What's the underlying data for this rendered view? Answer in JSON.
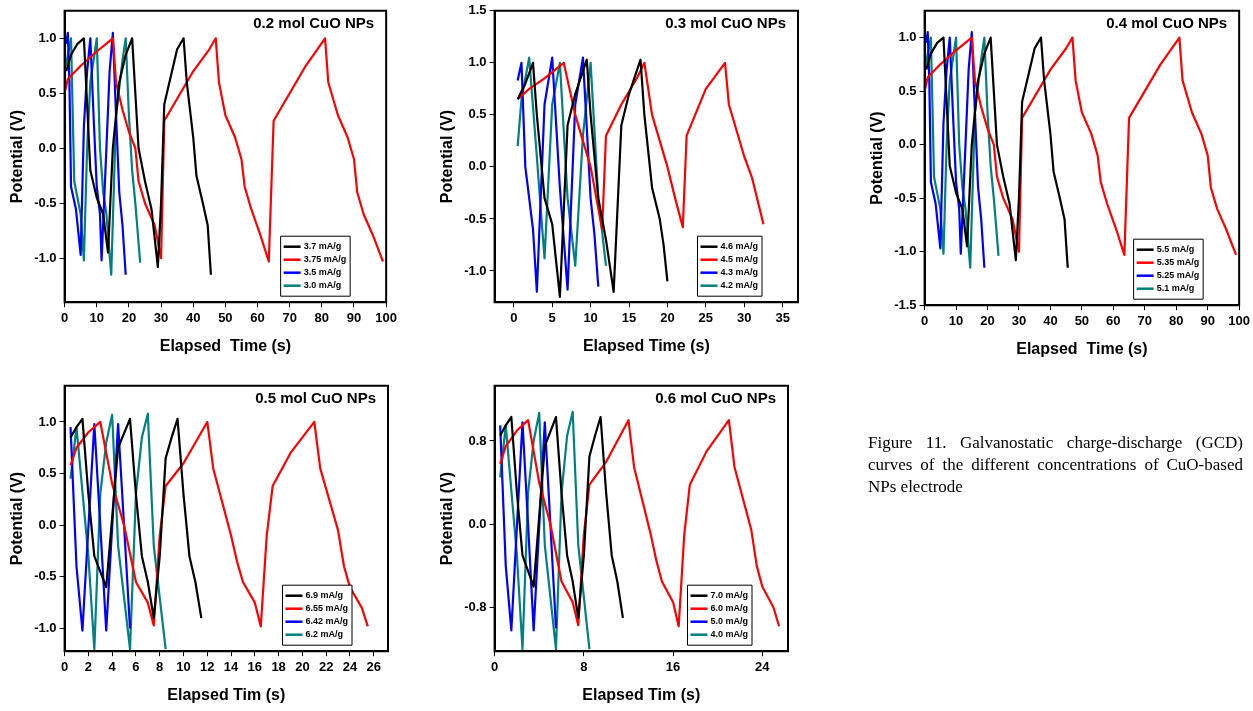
{
  "chart_data": [
    {
      "type": "line",
      "title": "0.2 mol CuO NPs",
      "xlabel": "Elapsed  Time (s)",
      "ylabel": "Potential (V)",
      "xlim": [
        0,
        100
      ],
      "xticks": [
        0,
        10,
        20,
        30,
        40,
        50,
        60,
        70,
        80,
        90,
        100
      ],
      "ylim": [
        -1.4,
        1.25
      ],
      "yticks": [
        {
          "value": -1,
          "label": "-1.0"
        },
        -0.5,
        {
          "value": 0,
          "label": "0.0"
        },
        0.5,
        {
          "value": 1,
          "label": "1.0"
        }
      ],
      "grid": false,
      "legend": "bottom right",
      "marker": "none",
      "line_style": "solid",
      "series": [
        {
          "name": "3.7 mA/g",
          "color": "#000000",
          "x": [
            0.5,
            2,
            4,
            6,
            7,
            8,
            10,
            12,
            13.5,
            15,
            17,
            19,
            21,
            22,
            23,
            25,
            27,
            29,
            30,
            31,
            33,
            35,
            37,
            38,
            40,
            41,
            43,
            44.5,
            45.5
          ],
          "values": [
            0.7,
            0.85,
            0.95,
            1.0,
            0.4,
            -0.2,
            -0.45,
            -0.6,
            -0.95,
            0.0,
            0.6,
            0.85,
            1.0,
            0.5,
            0.0,
            -0.3,
            -0.55,
            -1.08,
            -0.5,
            0.4,
            0.65,
            0.9,
            1.0,
            0.6,
            0.1,
            -0.25,
            -0.5,
            -0.7,
            -1.15
          ]
        },
        {
          "name": "3.75 mA/g",
          "color": "#ff0000",
          "x": [
            0,
            1,
            5,
            10,
            15,
            16,
            18,
            20,
            22,
            23,
            25,
            28,
            30,
            31,
            35,
            40,
            45,
            47,
            48,
            50,
            53,
            55,
            56,
            58,
            61,
            63.5,
            65,
            70,
            75,
            81,
            82,
            85,
            88,
            90,
            91,
            93,
            96,
            99
          ],
          "values": [
            0.5,
            0.63,
            0.75,
            0.88,
            1.0,
            0.6,
            0.35,
            0.15,
            0.0,
            -0.3,
            -0.5,
            -0.7,
            -1.0,
            0.25,
            0.45,
            0.7,
            0.9,
            1.0,
            0.6,
            0.3,
            0.1,
            -0.1,
            -0.35,
            -0.55,
            -0.8,
            -1.03,
            0.25,
            0.5,
            0.75,
            1.0,
            0.6,
            0.3,
            0.1,
            -0.1,
            -0.4,
            -0.6,
            -0.8,
            -1.03
          ]
        },
        {
          "name": "3.5 mA/g",
          "color": "#0000ff",
          "x": [
            0.5,
            1,
            1.5,
            2,
            3.5,
            5,
            6,
            7,
            8,
            9,
            10,
            11,
            11.5,
            13,
            14,
            15,
            16,
            17,
            18,
            19
          ],
          "values": [
            0.95,
            1.05,
            0.6,
            -0.35,
            -0.55,
            -0.97,
            0.2,
            0.7,
            1.0,
            0.3,
            -0.35,
            -0.6,
            -1.02,
            0.0,
            0.7,
            1.05,
            0.3,
            -0.4,
            -0.7,
            -1.15
          ]
        },
        {
          "name": "3.0 mA/g",
          "color": "#008080",
          "x": [
            0.5,
            1,
            2,
            3,
            5,
            6,
            7,
            8,
            10,
            11,
            12,
            13,
            14.5,
            16,
            18,
            19,
            20,
            21,
            22,
            23.5
          ],
          "values": [
            0.75,
            0.85,
            1.0,
            -0.3,
            -0.6,
            -1.02,
            0.0,
            0.6,
            1.0,
            0.0,
            -0.4,
            -0.6,
            -1.15,
            0.3,
            0.8,
            1.0,
            0.3,
            -0.2,
            -0.5,
            -1.04
          ]
        }
      ]
    },
    {
      "type": "line",
      "title": "0.3 mol CuO NPs",
      "xlabel": "Elapsed Time (s)",
      "ylabel": "Potential (V)",
      "xlim": [
        -2.5,
        37
      ],
      "xticks": [
        0,
        5,
        10,
        15,
        20,
        25,
        30,
        35
      ],
      "ylim": [
        -1.3,
        1.5
      ],
      "yticks": [
        {
          "value": -1,
          "label": "-1.0"
        },
        -0.5,
        {
          "value": 0,
          "label": "0.0"
        },
        0.5,
        {
          "value": 1,
          "label": "1.0"
        },
        1.5
      ],
      "grid": false,
      "legend": "bottom right",
      "marker": "none",
      "line_style": "solid",
      "series": [
        {
          "name": "4.6 mA/g",
          "color": "#000000",
          "x": [
            0.5,
            1.5,
            2.5,
            3,
            4,
            5,
            6,
            7,
            8,
            9.5,
            10,
            11,
            12,
            13,
            14,
            15,
            16.5,
            17,
            18,
            19,
            19.5,
            20
          ],
          "values": [
            0.65,
            0.8,
            1.0,
            0.5,
            -0.3,
            -0.55,
            -1.25,
            0.4,
            0.7,
            1.03,
            0.5,
            -0.3,
            -0.7,
            -1.2,
            0.4,
            0.7,
            1.03,
            0.5,
            -0.2,
            -0.5,
            -0.75,
            -1.1
          ]
        },
        {
          "name": "4.5 mA/g",
          "color": "#ff0000",
          "x": [
            0.5,
            2,
            4,
            6.5,
            8,
            10,
            11.5,
            12,
            14,
            16,
            17,
            18,
            19,
            20,
            21,
            22,
            22.5,
            25,
            27.5,
            28,
            29,
            30,
            31,
            32.5
          ],
          "values": [
            0.65,
            0.75,
            0.85,
            1.0,
            0.5,
            0.0,
            -0.6,
            0.3,
            0.6,
            0.85,
            1.0,
            0.5,
            0.25,
            0.0,
            -0.3,
            -0.58,
            0.3,
            0.75,
            1.0,
            0.6,
            0.35,
            0.1,
            -0.1,
            -0.55
          ]
        },
        {
          "name": "4.3 mA/g",
          "color": "#0000ff",
          "x": [
            0.5,
            1,
            1.5,
            2.5,
            3,
            4,
            5,
            6,
            7,
            8,
            9,
            10,
            10.5,
            11
          ],
          "values": [
            0.83,
            1.0,
            0.0,
            -0.6,
            -1.2,
            0.6,
            1.05,
            -0.2,
            -1.18,
            0.6,
            1.05,
            -0.3,
            -0.65,
            -1.15
          ]
        },
        {
          "name": "4.2 mA/g",
          "color": "#008080",
          "x": [
            0.5,
            1,
            2,
            3,
            3.5,
            4,
            5,
            6,
            7,
            8,
            9,
            10,
            11,
            12
          ],
          "values": [
            0.2,
            0.65,
            1.05,
            0.1,
            -0.4,
            -0.88,
            0.6,
            1.0,
            -0.3,
            -0.95,
            0.3,
            1.0,
            -0.3,
            -0.95
          ]
        }
      ]
    },
    {
      "type": "line",
      "title": "0.4 mol CuO NPs",
      "xlabel": "Elapsed  Time (s)",
      "ylabel": "Potential (V)",
      "xlim": [
        0,
        100
      ],
      "xticks": [
        0,
        10,
        20,
        30,
        40,
        50,
        60,
        70,
        80,
        90,
        100
      ],
      "ylim": [
        -1.5,
        1.25
      ],
      "yticks": [
        -1.5,
        {
          "value": -1,
          "label": "-1.0"
        },
        -0.5,
        {
          "value": 0,
          "label": "0.0"
        },
        0.5,
        {
          "value": 1,
          "label": "1.0"
        }
      ],
      "grid": false,
      "legend": "bottom right",
      "marker": "none",
      "line_style": "solid",
      "series": [
        {
          "name": "5.5 mA/g",
          "color": "#000000",
          "x": [
            0.5,
            2,
            4,
            6,
            7,
            8,
            10,
            12,
            13.5,
            15,
            17,
            19,
            21,
            22,
            23,
            25,
            27,
            29,
            30,
            31,
            33,
            35,
            37,
            38,
            40,
            41,
            43,
            44.5,
            45.5
          ],
          "values": [
            0.7,
            0.85,
            0.95,
            1.0,
            0.4,
            -0.2,
            -0.45,
            -0.6,
            -0.95,
            0.0,
            0.6,
            0.85,
            1.0,
            0.5,
            0.0,
            -0.3,
            -0.55,
            -1.08,
            -0.5,
            0.4,
            0.65,
            0.9,
            1.0,
            0.6,
            0.1,
            -0.25,
            -0.5,
            -0.7,
            -1.15
          ]
        },
        {
          "name": "5.35 mA/g",
          "color": "#ff0000",
          "x": [
            0,
            1,
            5,
            10,
            15,
            16,
            18,
            20,
            22,
            23,
            25,
            28,
            30,
            31,
            35,
            40,
            45,
            47,
            48,
            50,
            53,
            55,
            56,
            58,
            61,
            63.5,
            65,
            70,
            75,
            81,
            82,
            85,
            88,
            90,
            91,
            93,
            96,
            99
          ],
          "values": [
            0.5,
            0.63,
            0.75,
            0.88,
            1.0,
            0.6,
            0.35,
            0.15,
            0.0,
            -0.3,
            -0.5,
            -0.7,
            -1.0,
            0.25,
            0.45,
            0.7,
            0.9,
            1.0,
            0.6,
            0.3,
            0.1,
            -0.1,
            -0.35,
            -0.55,
            -0.8,
            -1.03,
            0.25,
            0.5,
            0.75,
            1.0,
            0.6,
            0.3,
            0.1,
            -0.1,
            -0.4,
            -0.6,
            -0.8,
            -1.03
          ]
        },
        {
          "name": "5.25 mA/g",
          "color": "#0000ff",
          "x": [
            0.5,
            1,
            1.5,
            2,
            3.5,
            5,
            6,
            7,
            8,
            9,
            10,
            11,
            11.5,
            13,
            14,
            15,
            16,
            17,
            18,
            19
          ],
          "values": [
            0.95,
            1.05,
            0.6,
            -0.35,
            -0.55,
            -0.97,
            0.2,
            0.7,
            1.0,
            0.3,
            -0.35,
            -0.6,
            -1.02,
            0.0,
            0.7,
            1.05,
            0.3,
            -0.4,
            -0.7,
            -1.15
          ]
        },
        {
          "name": "5.1 mA/g",
          "color": "#008080",
          "x": [
            0.5,
            1,
            2,
            3,
            5,
            6,
            7,
            8,
            10,
            11,
            12,
            13,
            14.5,
            16,
            18,
            19,
            20,
            21,
            22,
            23.5
          ],
          "values": [
            0.75,
            0.85,
            1.0,
            -0.3,
            -0.6,
            -1.02,
            0.0,
            0.6,
            1.0,
            0.0,
            -0.4,
            -0.6,
            -1.15,
            0.3,
            0.8,
            1.0,
            0.3,
            -0.2,
            -0.5,
            -1.04
          ]
        }
      ]
    },
    {
      "type": "line",
      "title": "0.5 mol CuO NPs",
      "xlabel": "Elapsed Tim (s)",
      "ylabel": "Potential (V)",
      "xlim": [
        0,
        27.2
      ],
      "xticks": [
        0,
        2,
        4,
        6,
        8,
        10,
        12,
        14,
        16,
        18,
        20,
        22,
        24,
        26
      ],
      "ylim": [
        -1.22,
        1.35
      ],
      "yticks": [
        {
          "value": -1,
          "label": "-1.0"
        },
        -0.5,
        {
          "value": 0,
          "label": "0.0"
        },
        0.5,
        {
          "value": 1,
          "label": "1.0"
        }
      ],
      "grid": false,
      "legend": "bottom right",
      "marker": "none",
      "line_style": "solid",
      "series": [
        {
          "name": "6.9 mA/g",
          "color": "#000000",
          "x": [
            0.5,
            1,
            1.5,
            2,
            2.5,
            3.5,
            4.5,
            5.5,
            6,
            6.5,
            7,
            7.5,
            8,
            8.5,
            9,
            9.5,
            10,
            10.5,
            11,
            11.5
          ],
          "values": [
            0.85,
            0.95,
            1.03,
            0.3,
            -0.3,
            -0.6,
            0.75,
            1.03,
            0.3,
            -0.3,
            -0.55,
            -0.9,
            -0.3,
            0.65,
            0.85,
            1.03,
            0.3,
            -0.3,
            -0.55,
            -0.9
          ]
        },
        {
          "name": "6.55 mA/g",
          "color": "#ff0000",
          "x": [
            0.5,
            1,
            2,
            3,
            4,
            5,
            6,
            7,
            7.5,
            8,
            8.5,
            10,
            12,
            12.5,
            14,
            14.5,
            15,
            16,
            16.5,
            17,
            17.5,
            19,
            21,
            21.5,
            23,
            23.5,
            24,
            25,
            25.5
          ],
          "values": [
            0.58,
            0.75,
            0.9,
            1.0,
            0.4,
            0.0,
            -0.55,
            -0.75,
            -0.97,
            -0.1,
            0.38,
            0.6,
            1.0,
            0.55,
            -0.1,
            -0.35,
            -0.55,
            -0.75,
            -0.98,
            -0.1,
            0.38,
            0.7,
            1.0,
            0.55,
            -0.05,
            -0.4,
            -0.6,
            -0.8,
            -0.98
          ]
        },
        {
          "name": "6.42 mA/g",
          "color": "#0000ff",
          "x": [
            0.5,
            1,
            1.5,
            2.5,
            3,
            3.5,
            4.5,
            5,
            5.5
          ],
          "values": [
            0.95,
            -0.4,
            -1.02,
            0.98,
            0.0,
            -1.02,
            0.98,
            0.0,
            -1.0
          ]
        },
        {
          "name": "6.2 mA/g",
          "color": "#008080",
          "x": [
            0.5,
            1,
            2,
            2.5,
            3,
            3.5,
            4,
            4.5,
            5.5,
            6,
            6.5,
            7,
            7.5,
            8.5
          ],
          "values": [
            0.45,
            0.95,
            -0.3,
            -1.2,
            0.3,
            0.8,
            1.07,
            -0.2,
            -1.2,
            0.3,
            0.85,
            1.08,
            -0.2,
            -1.2
          ]
        }
      ]
    },
    {
      "type": "line",
      "title": "0.6 mol CuO NPs",
      "xlabel": "Elapsed Tim (s)",
      "ylabel": "Potential (V)",
      "xlim": [
        0,
        26.3
      ],
      "xticks": [
        0,
        8,
        16,
        24
      ],
      "ylim": [
        -1.22,
        1.33
      ],
      "yticks": [
        -0.8,
        {
          "value": 0,
          "label": "0.0"
        },
        0.8
      ],
      "grid": false,
      "legend": "bottom right",
      "marker": "none",
      "line_style": "solid",
      "annotations": [
        "Figure 11. Galvanostatic charge-discharge (GCD) curves of the different concentrations of CuO-based NPs electrode"
      ],
      "series": [
        {
          "name": "7.0 mA/g",
          "color": "#000000",
          "x": [
            0.5,
            1,
            1.5,
            2,
            2.5,
            3.5,
            4.5,
            5.5,
            6,
            6.5,
            7,
            7.5,
            8,
            8.5,
            9,
            9.5,
            10,
            10.5,
            11,
            11.5
          ],
          "values": [
            0.85,
            0.95,
            1.03,
            0.3,
            -0.3,
            -0.6,
            0.75,
            1.03,
            0.3,
            -0.3,
            -0.55,
            -0.9,
            -0.3,
            0.65,
            0.85,
            1.03,
            0.3,
            -0.3,
            -0.55,
            -0.9
          ]
        },
        {
          "name": "6.0 mA/g",
          "color": "#ff0000",
          "x": [
            0.5,
            1,
            2,
            3,
            4,
            5,
            6,
            7,
            7.5,
            8,
            8.5,
            10,
            12,
            12.5,
            14,
            14.5,
            15,
            16,
            16.5,
            17,
            17.5,
            19,
            21,
            21.5,
            23,
            23.5,
            24,
            25,
            25.5
          ],
          "values": [
            0.58,
            0.75,
            0.9,
            1.0,
            0.4,
            0.0,
            -0.55,
            -0.75,
            -0.97,
            -0.1,
            0.38,
            0.6,
            1.0,
            0.55,
            -0.1,
            -0.35,
            -0.55,
            -0.75,
            -0.98,
            -0.1,
            0.38,
            0.7,
            1.0,
            0.55,
            -0.05,
            -0.4,
            -0.6,
            -0.8,
            -0.98
          ]
        },
        {
          "name": "5.0 mA/g",
          "color": "#0000ff",
          "x": [
            0.5,
            1,
            1.5,
            2.5,
            3,
            3.5,
            4.5,
            5,
            5.5
          ],
          "values": [
            0.95,
            -0.4,
            -1.02,
            0.98,
            0.0,
            -1.02,
            0.98,
            0.0,
            -1.0
          ]
        },
        {
          "name": "4.0 mA/g",
          "color": "#008080",
          "x": [
            0.5,
            1,
            2,
            2.5,
            3,
            3.5,
            4,
            4.5,
            5.5,
            6,
            6.5,
            7,
            7.5,
            8.5
          ],
          "values": [
            0.45,
            0.95,
            -0.3,
            -1.2,
            0.3,
            0.8,
            1.07,
            -0.2,
            -1.2,
            0.3,
            0.85,
            1.08,
            -0.2,
            -1.2
          ]
        }
      ]
    }
  ]
}
